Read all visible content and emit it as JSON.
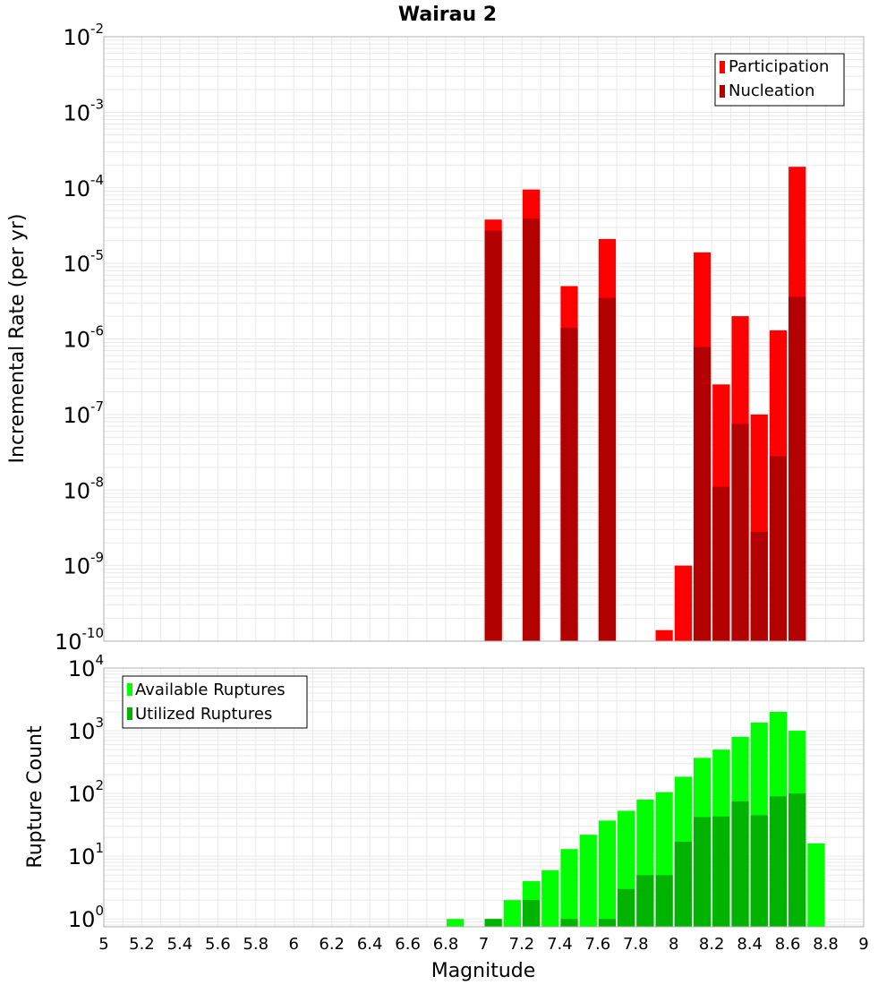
{
  "chart_data": [
    {
      "type": "bar",
      "title": "Wairau 2",
      "xlabel": "",
      "ylabel": "Incremental Rate (per yr)",
      "xlim": [
        5,
        9
      ],
      "ylim": [
        1e-10,
        0.01
      ],
      "y_scale": "log",
      "grid": true,
      "legend_position": "top-right",
      "y_ticks": [
        {
          "base": "10",
          "exp": "-10",
          "value": 1e-10
        },
        {
          "base": "10",
          "exp": "-9",
          "value": 1e-09
        },
        {
          "base": "10",
          "exp": "-8",
          "value": 1e-08
        },
        {
          "base": "10",
          "exp": "-7",
          "value": 1e-07
        },
        {
          "base": "10",
          "exp": "-6",
          "value": 1e-06
        },
        {
          "base": "10",
          "exp": "-5",
          "value": 1e-05
        },
        {
          "base": "10",
          "exp": "-4",
          "value": 0.0001
        },
        {
          "base": "10",
          "exp": "-3",
          "value": 0.001
        },
        {
          "base": "10",
          "exp": "-2",
          "value": 0.01
        }
      ],
      "series": [
        {
          "name": "Participation",
          "color": "#ff0000",
          "points": [
            {
              "x": 7.05,
              "y": 3.8e-05
            },
            {
              "x": 7.25,
              "y": 9.5e-05
            },
            {
              "x": 7.45,
              "y": 5e-06
            },
            {
              "x": 7.65,
              "y": 2.1e-05
            },
            {
              "x": 7.95,
              "y": 1.4e-10
            },
            {
              "x": 8.05,
              "y": 1e-09
            },
            {
              "x": 8.15,
              "y": 1.4e-05
            },
            {
              "x": 8.25,
              "y": 2.5e-07
            },
            {
              "x": 8.35,
              "y": 2e-06
            },
            {
              "x": 8.45,
              "y": 1e-07
            },
            {
              "x": 8.55,
              "y": 1.3e-06
            },
            {
              "x": 8.65,
              "y": 0.00019
            }
          ]
        },
        {
          "name": "Nucleation",
          "color": "#b30000",
          "points": [
            {
              "x": 7.05,
              "y": 2.7e-05
            },
            {
              "x": 7.25,
              "y": 3.9e-05
            },
            {
              "x": 7.45,
              "y": 1.4e-06
            },
            {
              "x": 7.65,
              "y": 3.5e-06
            },
            {
              "x": 8.15,
              "y": 7.8e-07
            },
            {
              "x": 8.25,
              "y": 1.1e-08
            },
            {
              "x": 8.35,
              "y": 7.5e-08
            },
            {
              "x": 8.45,
              "y": 2.8e-09
            },
            {
              "x": 8.55,
              "y": 2.8e-08
            },
            {
              "x": 8.65,
              "y": 3.6e-06
            }
          ]
        }
      ]
    },
    {
      "type": "bar",
      "title": "",
      "xlabel": "Magnitude",
      "ylabel": "Rupture Count",
      "xlim": [
        5,
        9
      ],
      "ylim": [
        0.75,
        10000
      ],
      "y_scale": "log",
      "grid": true,
      "legend_position": "top-left",
      "x_ticks": [
        "5",
        "5.2",
        "5.4",
        "5.6",
        "5.8",
        "6",
        "6.2",
        "6.4",
        "6.6",
        "6.8",
        "7",
        "7.2",
        "7.4",
        "7.6",
        "7.8",
        "8",
        "8.2",
        "8.4",
        "8.6",
        "8.8",
        "9"
      ],
      "y_ticks": [
        {
          "base": "10",
          "exp": "0",
          "value": 1
        },
        {
          "base": "10",
          "exp": "1",
          "value": 10
        },
        {
          "base": "10",
          "exp": "2",
          "value": 100
        },
        {
          "base": "10",
          "exp": "3",
          "value": 1000
        },
        {
          "base": "10",
          "exp": "4",
          "value": 10000
        }
      ],
      "series": [
        {
          "name": "Available Ruptures",
          "color": "#00ff00",
          "points": [
            {
              "x": 6.85,
              "y": 1
            },
            {
              "x": 7.05,
              "y": 1
            },
            {
              "x": 7.15,
              "y": 2
            },
            {
              "x": 7.25,
              "y": 4
            },
            {
              "x": 7.35,
              "y": 6
            },
            {
              "x": 7.45,
              "y": 13
            },
            {
              "x": 7.55,
              "y": 22
            },
            {
              "x": 7.65,
              "y": 37
            },
            {
              "x": 7.75,
              "y": 53
            },
            {
              "x": 7.85,
              "y": 80
            },
            {
              "x": 7.95,
              "y": 105
            },
            {
              "x": 8.05,
              "y": 185
            },
            {
              "x": 8.15,
              "y": 370
            },
            {
              "x": 8.25,
              "y": 500
            },
            {
              "x": 8.35,
              "y": 800
            },
            {
              "x": 8.45,
              "y": 1350
            },
            {
              "x": 8.55,
              "y": 2000
            },
            {
              "x": 8.65,
              "y": 1000
            },
            {
              "x": 8.75,
              "y": 16
            }
          ]
        },
        {
          "name": "Utilized Ruptures",
          "color": "#00b300",
          "points": [
            {
              "x": 7.05,
              "y": 1
            },
            {
              "x": 7.25,
              "y": 2
            },
            {
              "x": 7.45,
              "y": 1
            },
            {
              "x": 7.65,
              "y": 1
            },
            {
              "x": 7.75,
              "y": 3
            },
            {
              "x": 7.85,
              "y": 5
            },
            {
              "x": 7.95,
              "y": 5
            },
            {
              "x": 8.05,
              "y": 17
            },
            {
              "x": 8.15,
              "y": 42
            },
            {
              "x": 8.25,
              "y": 43
            },
            {
              "x": 8.35,
              "y": 75
            },
            {
              "x": 8.45,
              "y": 45
            },
            {
              "x": 8.55,
              "y": 90
            },
            {
              "x": 8.65,
              "y": 100
            }
          ]
        }
      ]
    }
  ]
}
